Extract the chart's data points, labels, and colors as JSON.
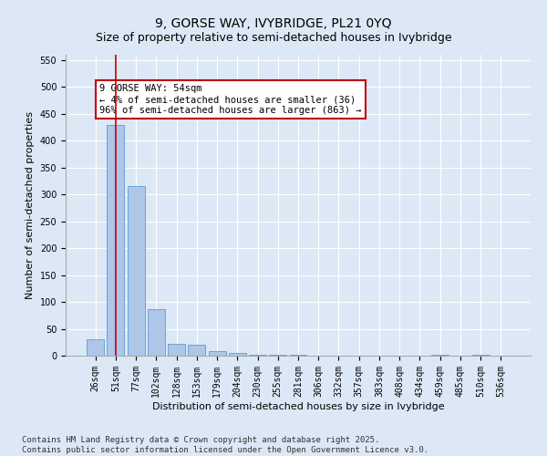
{
  "title": "9, GORSE WAY, IVYBRIDGE, PL21 0YQ",
  "subtitle": "Size of property relative to semi-detached houses in Ivybridge",
  "xlabel": "Distribution of semi-detached houses by size in Ivybridge",
  "ylabel": "Number of semi-detached properties",
  "categories": [
    "26sqm",
    "51sqm",
    "77sqm",
    "102sqm",
    "128sqm",
    "153sqm",
    "179sqm",
    "204sqm",
    "230sqm",
    "255sqm",
    "281sqm",
    "306sqm",
    "332sqm",
    "357sqm",
    "383sqm",
    "408sqm",
    "434sqm",
    "459sqm",
    "485sqm",
    "510sqm",
    "536sqm"
  ],
  "values": [
    30,
    430,
    315,
    87,
    22,
    20,
    8,
    5,
    2,
    1,
    1,
    0,
    0,
    0,
    0,
    0,
    0,
    1,
    0,
    1,
    0
  ],
  "bar_color": "#aec6e8",
  "bar_edge_color": "#5b9bd5",
  "highlight_line_color": "#c00000",
  "highlight_line_index": 1,
  "annotation_text": "9 GORSE WAY: 54sqm\n← 4% of semi-detached houses are smaller (36)\n96% of semi-detached houses are larger (863) →",
  "annotation_box_color": "#ffffff",
  "annotation_box_edge_color": "#c00000",
  "ylim": [
    0,
    560
  ],
  "yticks": [
    0,
    50,
    100,
    150,
    200,
    250,
    300,
    350,
    400,
    450,
    500,
    550
  ],
  "background_color": "#dce8f5",
  "plot_background": "#dce8f5",
  "footer_text": "Contains HM Land Registry data © Crown copyright and database right 2025.\nContains public sector information licensed under the Open Government Licence v3.0.",
  "title_fontsize": 10,
  "axis_label_fontsize": 8,
  "tick_fontsize": 7,
  "footer_fontsize": 6.5
}
